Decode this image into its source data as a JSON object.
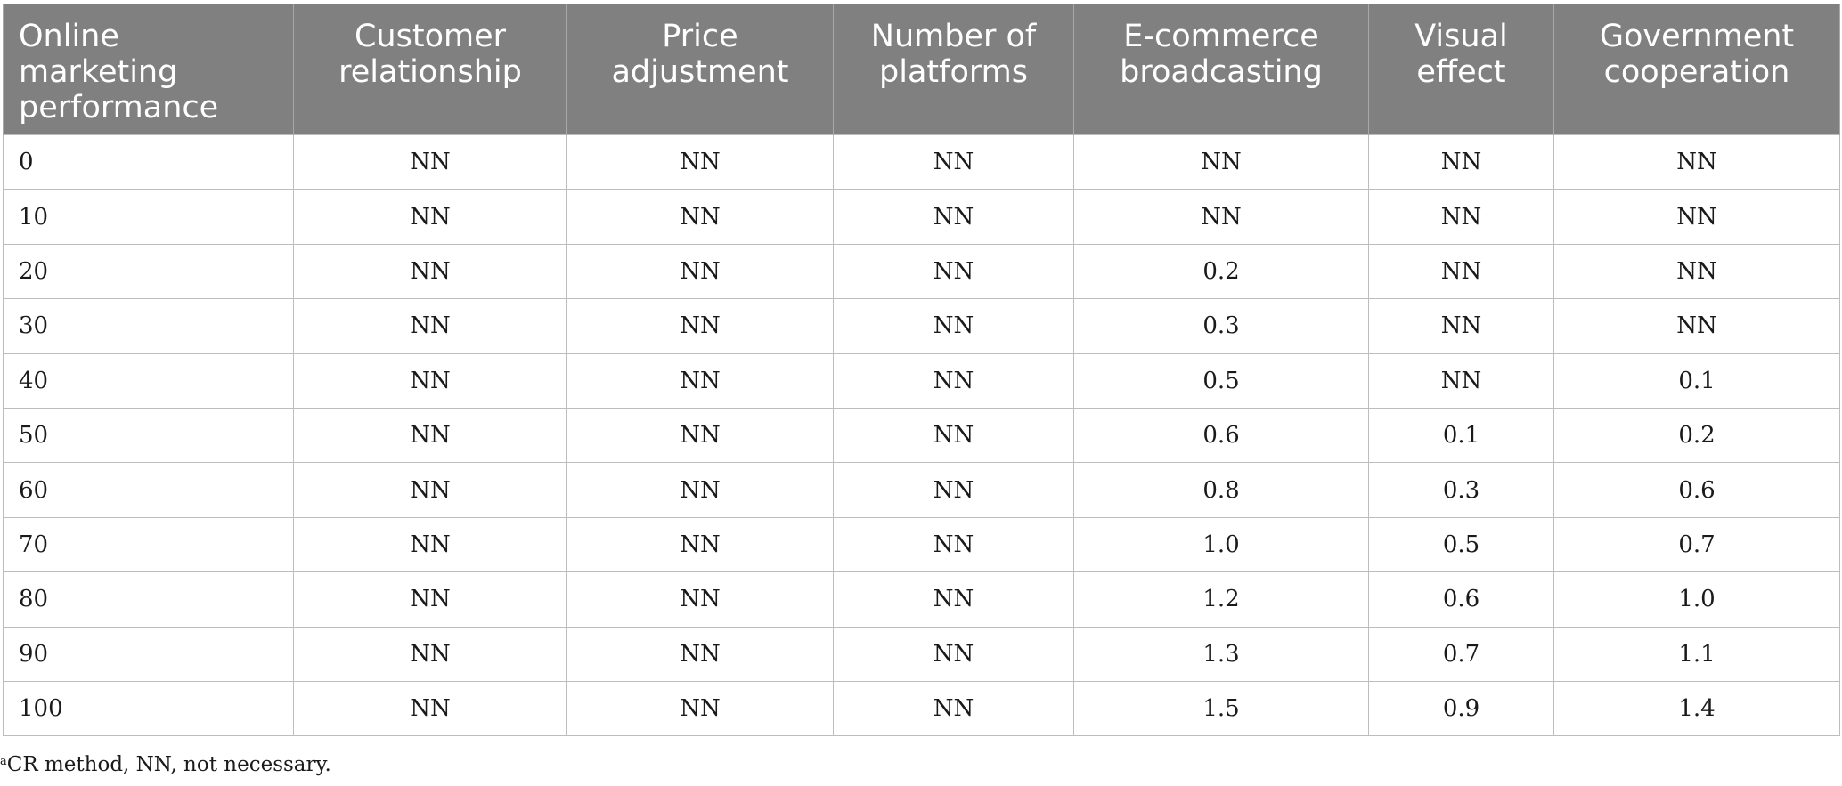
{
  "table": {
    "headers": [
      "Online marketing performance",
      "Customer relationship",
      "Price adjustment",
      "Number of platforms",
      "E-commerce broadcasting",
      "Visual effect",
      "Government cooperation"
    ],
    "rows": [
      [
        "0",
        "NN",
        "NN",
        "NN",
        "NN",
        "NN",
        "NN"
      ],
      [
        "10",
        "NN",
        "NN",
        "NN",
        "NN",
        "NN",
        "NN"
      ],
      [
        "20",
        "NN",
        "NN",
        "NN",
        "0.2",
        "NN",
        "NN"
      ],
      [
        "30",
        "NN",
        "NN",
        "NN",
        "0.3",
        "NN",
        "NN"
      ],
      [
        "40",
        "NN",
        "NN",
        "NN",
        "0.5",
        "NN",
        "0.1"
      ],
      [
        "50",
        "NN",
        "NN",
        "NN",
        "0.6",
        "0.1",
        "0.2"
      ],
      [
        "60",
        "NN",
        "NN",
        "NN",
        "0.8",
        "0.3",
        "0.6"
      ],
      [
        "70",
        "NN",
        "NN",
        "NN",
        "1.0",
        "0.5",
        "0.7"
      ],
      [
        "80",
        "NN",
        "NN",
        "NN",
        "1.2",
        "0.6",
        "1.0"
      ],
      [
        "90",
        "NN",
        "NN",
        "NN",
        "1.3",
        "0.7",
        "1.1"
      ],
      [
        "100",
        "NN",
        "NN",
        "NN",
        "1.5",
        "0.9",
        "1.4"
      ]
    ]
  },
  "footnote": {
    "marker": "a",
    "text": "CR method, NN, not necessary."
  },
  "colors": {
    "header_bg": "#808080",
    "header_text": "#ffffff",
    "grid_line": "#bdbdbd"
  }
}
